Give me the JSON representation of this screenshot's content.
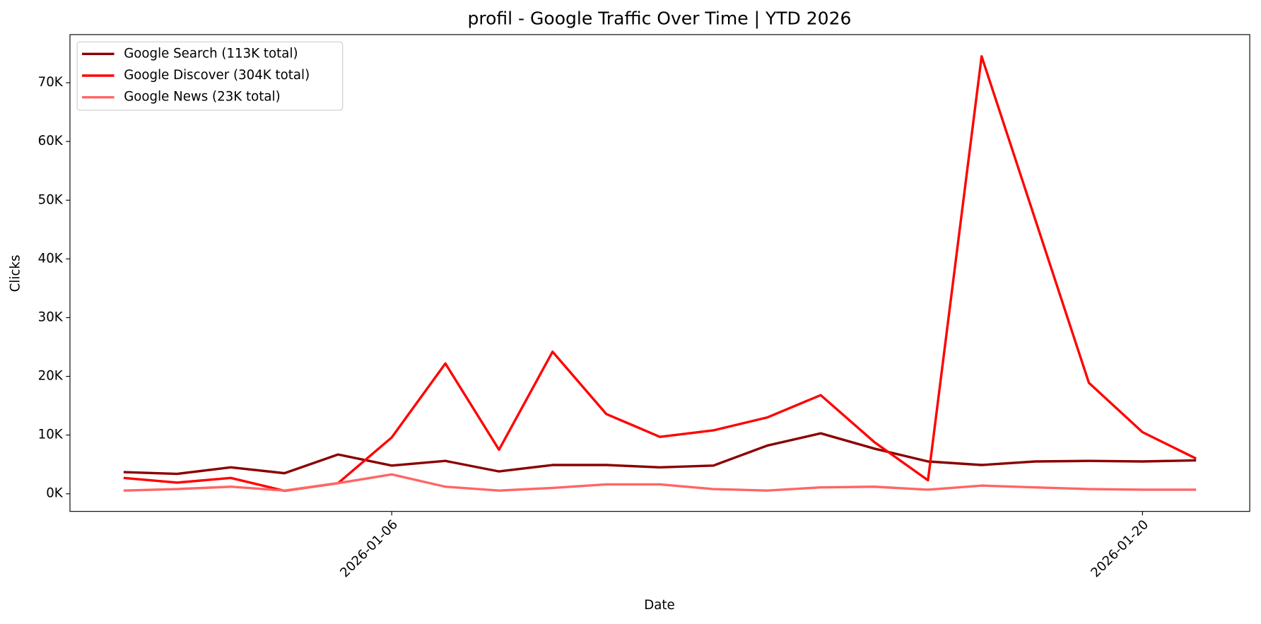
{
  "chart_data": {
    "type": "line",
    "title": "profil - Google Traffic Over Time | YTD 2026",
    "x_label": "Date",
    "y_label": "Clicks",
    "x": [
      "2026-01-01",
      "2026-01-02",
      "2026-01-03",
      "2026-01-04",
      "2026-01-05",
      "2026-01-06",
      "2026-01-07",
      "2026-01-08",
      "2026-01-09",
      "2026-01-10",
      "2026-01-11",
      "2026-01-12",
      "2026-01-13",
      "2026-01-14",
      "2026-01-15",
      "2026-01-16",
      "2026-01-17",
      "2026-01-18",
      "2026-01-19",
      "2026-01-20",
      "2026-01-21"
    ],
    "series": [
      {
        "name": "Google Search (113K total)",
        "color": "#8b0000",
        "values": [
          3700,
          3400,
          4500,
          3500,
          6700,
          4800,
          5600,
          3800,
          4900,
          4900,
          4500,
          4800,
          8200,
          10300,
          7700,
          5500,
          4900,
          5500,
          5600,
          5500,
          5700
        ]
      },
      {
        "name": "Google Discover (304K total)",
        "color": "#ff0000",
        "values": [
          2700,
          1900,
          2700,
          500,
          1800,
          9600,
          22200,
          7500,
          24200,
          13600,
          9700,
          10800,
          13000,
          16800,
          8800,
          2300,
          74500,
          46700,
          18900,
          10500,
          6000
        ]
      },
      {
        "name": "Google News (23K total)",
        "color": "#ff6666",
        "values": [
          550,
          800,
          1200,
          550,
          1800,
          3300,
          1200,
          550,
          1000,
          1600,
          1600,
          800,
          550,
          1100,
          1200,
          700,
          1400,
          1100,
          800,
          700,
          700
        ]
      }
    ],
    "xlim": [
      "2025-12-31",
      "2026-01-22"
    ],
    "xticks": [
      "2026-01-06",
      "2026-01-20"
    ],
    "ylim": [
      -3000,
      78200
    ],
    "yticks": [
      {
        "value": 0,
        "label": "0K"
      },
      {
        "value": 10000,
        "label": "10K"
      },
      {
        "value": 20000,
        "label": "20K"
      },
      {
        "value": 30000,
        "label": "30K"
      },
      {
        "value": 40000,
        "label": "40K"
      },
      {
        "value": 50000,
        "label": "50K"
      },
      {
        "value": 60000,
        "label": "60K"
      },
      {
        "value": 70000,
        "label": "70K"
      }
    ],
    "grid": false,
    "legend": "upper left"
  }
}
